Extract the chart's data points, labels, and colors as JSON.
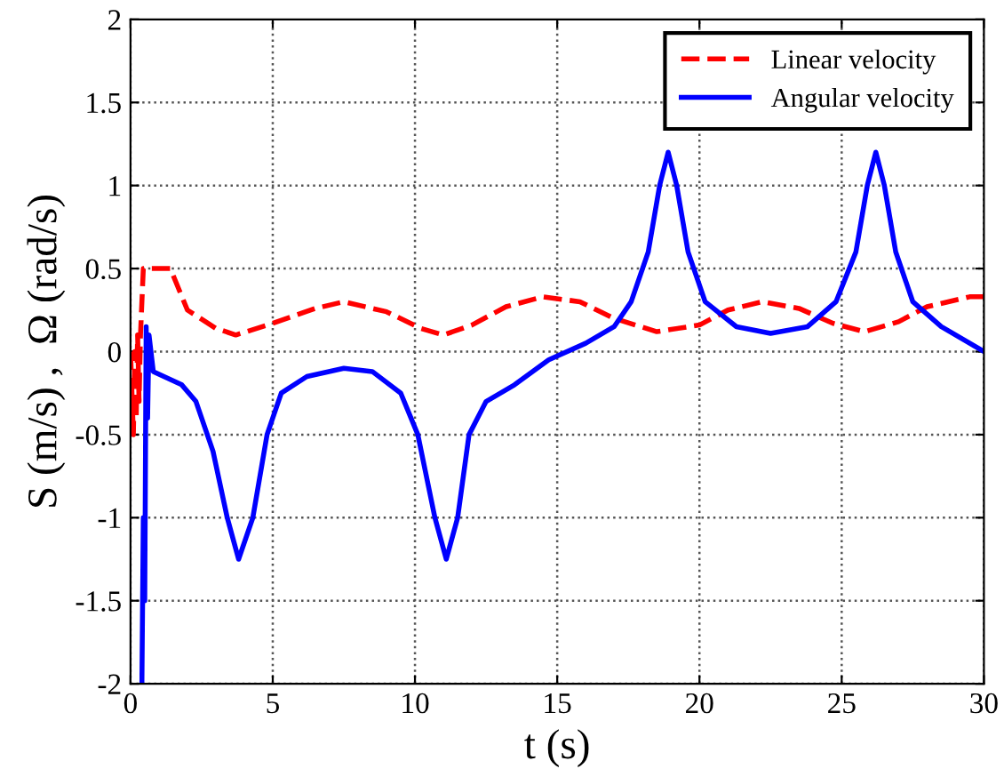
{
  "chart_data": {
    "type": "line",
    "xlabel": "t (s)",
    "ylabel": "S (m/s) ,  Ω (rad/s)",
    "xlim": [
      0,
      30
    ],
    "ylim": [
      -2,
      2
    ],
    "xticks": [
      0,
      5,
      10,
      15,
      20,
      25,
      30
    ],
    "yticks": [
      -2,
      -1.5,
      -1,
      -0.5,
      0,
      0.5,
      1,
      1.5,
      2
    ],
    "grid": true,
    "legend": "top right",
    "series": [
      {
        "name": "Linear velocity",
        "color": "#ff0000",
        "line_style": "dashed",
        "x": [
          0,
          0.1,
          0.15,
          0.2,
          0.25,
          0.3,
          0.35,
          0.45,
          0.6,
          1.4,
          2.0,
          3.0,
          3.7,
          5.0,
          6.5,
          7.5,
          9.0,
          10.2,
          11.0,
          12.0,
          13.2,
          14.5,
          15.8,
          17.0,
          18.5,
          20.0,
          21.0,
          22.2,
          23.5,
          24.7,
          25.8,
          27.0,
          28.0,
          29.5,
          30
        ],
        "values": [
          0,
          -0.5,
          0,
          -0.4,
          0.1,
          -0.3,
          0.1,
          0.5,
          0.5,
          0.5,
          0.25,
          0.14,
          0.1,
          0.17,
          0.26,
          0.3,
          0.24,
          0.14,
          0.1,
          0.16,
          0.27,
          0.33,
          0.3,
          0.2,
          0.12,
          0.16,
          0.25,
          0.3,
          0.26,
          0.17,
          0.12,
          0.18,
          0.27,
          0.33,
          0.33
        ]
      },
      {
        "name": "Angular velocity",
        "color": "#0000ff",
        "line_style": "solid",
        "x": [
          0.4,
          0.45,
          0.5,
          0.55,
          0.6,
          0.65,
          0.8,
          1.8,
          2.3,
          2.9,
          3.4,
          3.8,
          4.3,
          4.8,
          5.3,
          6.2,
          7.5,
          8.5,
          9.5,
          10.1,
          10.7,
          11.1,
          11.5,
          11.9,
          12.5,
          13.5,
          14.7,
          16.0,
          17.0,
          17.6,
          18.2,
          18.6,
          18.9,
          19.2,
          19.6,
          20.2,
          21.3,
          22.5,
          23.8,
          24.8,
          25.5,
          25.9,
          26.2,
          26.5,
          26.9,
          27.5,
          28.5,
          30
        ],
        "values": [
          -2,
          -1,
          -1.5,
          0.15,
          -0.4,
          0.1,
          -0.12,
          -0.2,
          -0.3,
          -0.6,
          -1.0,
          -1.25,
          -1.0,
          -0.5,
          -0.25,
          -0.15,
          -0.1,
          -0.12,
          -0.25,
          -0.5,
          -1.0,
          -1.25,
          -1.0,
          -0.5,
          -0.3,
          -0.2,
          -0.05,
          0.05,
          0.15,
          0.3,
          0.6,
          1.0,
          1.2,
          1.0,
          0.6,
          0.3,
          0.15,
          0.11,
          0.15,
          0.3,
          0.6,
          1.0,
          1.2,
          1.0,
          0.6,
          0.3,
          0.15,
          0
        ]
      }
    ]
  }
}
